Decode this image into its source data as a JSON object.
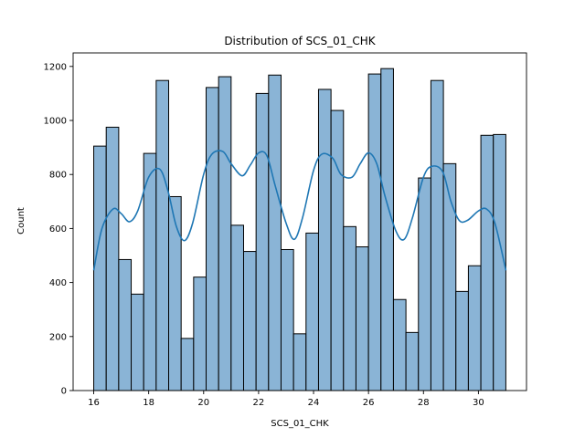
{
  "chart_data": {
    "type": "histogram",
    "title": "Distribution of SCS_01_CHK",
    "xlabel": "SCS_01_CHK",
    "ylabel": "Count",
    "xlim": [
      15.25,
      31.75
    ],
    "ylim": [
      0,
      1250
    ],
    "xticks": [
      16,
      18,
      20,
      22,
      24,
      26,
      28,
      30
    ],
    "yticks": [
      0,
      200,
      400,
      600,
      800,
      1000,
      1200
    ],
    "bin_start": 16,
    "bin_width": 0.4545,
    "counts": [
      905,
      975,
      485,
      357,
      878,
      1148,
      718,
      193,
      420,
      1122,
      1162,
      612,
      515,
      1100,
      1168,
      522,
      210,
      583,
      1115,
      1037,
      607,
      532,
      1172,
      1192,
      337,
      215,
      787,
      1148,
      840,
      367,
      462,
      945,
      948
    ],
    "kde": {
      "x": [
        16.0,
        16.3,
        16.7,
        17.0,
        17.3,
        17.6,
        18.0,
        18.4,
        18.7,
        19.0,
        19.3,
        19.6,
        20.0,
        20.3,
        20.7,
        21.0,
        21.4,
        21.7,
        22.0,
        22.3,
        22.6,
        23.0,
        23.3,
        23.6,
        24.0,
        24.3,
        24.7,
        25.0,
        25.4,
        25.7,
        26.0,
        26.3,
        26.6,
        27.0,
        27.3,
        27.6,
        28.0,
        28.3,
        28.7,
        29.0,
        29.3,
        29.6,
        30.0,
        30.3,
        30.6,
        31.0
      ],
      "y": [
        445,
        600,
        672,
        655,
        625,
        665,
        790,
        820,
        740,
        610,
        555,
        620,
        800,
        875,
        885,
        840,
        795,
        835,
        880,
        870,
        760,
        620,
        560,
        640,
        815,
        875,
        860,
        800,
        790,
        840,
        880,
        840,
        720,
        590,
        560,
        640,
        790,
        830,
        810,
        700,
        630,
        630,
        665,
        672,
        620,
        445
      ]
    },
    "colors": {
      "bar_fill": "#8ab4d6",
      "bar_edge": "#000000",
      "kde_line": "#1f77b4"
    },
    "grid": false,
    "legend": "none"
  }
}
